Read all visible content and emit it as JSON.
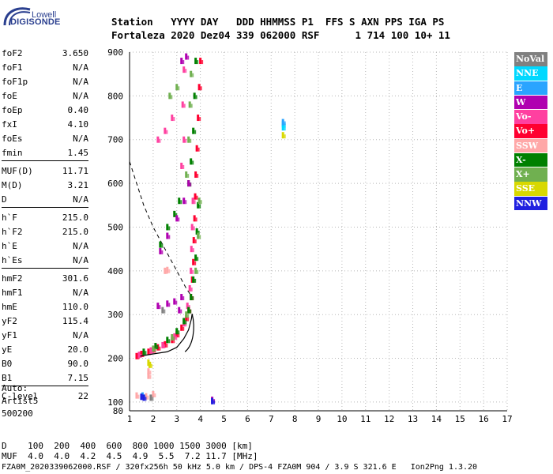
{
  "logo": {
    "line1": "Lowell",
    "line2": "DIGISONDE"
  },
  "header": {
    "line1": "Station   YYYY DAY   DDD HHMMSS P1  FFS S AXN PPS IGA PS",
    "line2": "Fortaleza 2020 Dez04 339 062000 RSF      1 714 100 10+ 11"
  },
  "params": [
    {
      "k": "foF2",
      "v": "3.650"
    },
    {
      "k": "foF1",
      "v": "N/A"
    },
    {
      "k": "foF1p",
      "v": "N/A"
    },
    {
      "k": "foE",
      "v": "N/A"
    },
    {
      "k": "foEp",
      "v": "0.40"
    },
    {
      "k": "fxI",
      "v": "4.10"
    },
    {
      "k": "foEs",
      "v": "N/A"
    },
    {
      "k": "fmin",
      "v": "1.45"
    },
    {
      "k": "MUF(D)",
      "v": "11.71"
    },
    {
      "k": "M(D)",
      "v": "3.21"
    },
    {
      "k": "D",
      "v": "N/A"
    },
    {
      "k": "h`F",
      "v": "215.0"
    },
    {
      "k": "h`F2",
      "v": "215.0"
    },
    {
      "k": "h`E",
      "v": "N/A"
    },
    {
      "k": "h`Es",
      "v": "N/A"
    },
    {
      "k": "hmF2",
      "v": "301.6"
    },
    {
      "k": "hmF1",
      "v": "N/A"
    },
    {
      "k": "hmE",
      "v": "110.0"
    },
    {
      "k": "yF2",
      "v": "115.4"
    },
    {
      "k": "yF1",
      "v": "N/A"
    },
    {
      "k": "yE",
      "v": "20.0"
    },
    {
      "k": "B0",
      "v": "90.0"
    },
    {
      "k": "B1",
      "v": "7.15"
    },
    {
      "k": "C-level",
      "v": "22"
    }
  ],
  "auto": {
    "line1": "Auto:",
    "line2": "Artist5",
    "line3": "500200"
  },
  "legend": [
    {
      "label": "NoVal",
      "color": "#808080"
    },
    {
      "label": "NNE",
      "color": "#00d8ff"
    },
    {
      "label": "E",
      "color": "#2aa4ff"
    },
    {
      "label": "W",
      "color": "#b000b0"
    },
    {
      "label": "Vo-",
      "color": "#ff40a0"
    },
    {
      "label": "Vo+",
      "color": "#ff0030"
    },
    {
      "label": "SSW",
      "color": "#ffa8a8"
    },
    {
      "label": "X-",
      "color": "#008000"
    },
    {
      "label": "X+",
      "color": "#70b050"
    },
    {
      "label": "SSE",
      "color": "#d8d800"
    },
    {
      "label": "NNW",
      "color": "#2020e0"
    }
  ],
  "bottom": {
    "row1": "D    100  200  400  600  800 1000 1500 3000 [km]",
    "row2": "MUF  4.0  4.0  4.2  4.5  4.9  5.5  7.2 11.7 [MHz]"
  },
  "footer": "FZA0M_2020339062000.RSF / 320fx256h 50 kHz 5.0 km / DPS-4 FZA0M 904 / 3.9 S 321.6 E   Ion2Png 1.3.20",
  "chart_data": {
    "type": "scatter",
    "title": "",
    "xlabel": "",
    "ylabel": "",
    "xlim": [
      1,
      17
    ],
    "ylim": [
      80,
      900
    ],
    "xticks": [
      1,
      2,
      3,
      4,
      5,
      6,
      7,
      8,
      9,
      10,
      11,
      12,
      13,
      14,
      15,
      16,
      17
    ],
    "yticks": [
      100,
      200,
      300,
      400,
      500,
      600,
      700,
      800,
      900
    ],
    "grid": "dotted",
    "series": [
      {
        "name": "Vo+",
        "color": "#ff0030",
        "points": [
          [
            1.3,
            205
          ],
          [
            1.5,
            210
          ],
          [
            1.8,
            215
          ],
          [
            2.0,
            220
          ],
          [
            2.2,
            225
          ],
          [
            2.5,
            232
          ],
          [
            2.8,
            242
          ],
          [
            3.0,
            255
          ],
          [
            3.2,
            270
          ],
          [
            3.4,
            292
          ],
          [
            3.5,
            310
          ],
          [
            3.6,
            340
          ],
          [
            3.65,
            380
          ],
          [
            3.7,
            420
          ],
          [
            3.72,
            470
          ],
          [
            3.75,
            520
          ],
          [
            3.78,
            570
          ],
          [
            3.8,
            620
          ],
          [
            3.85,
            680
          ],
          [
            3.9,
            750
          ],
          [
            3.95,
            820
          ],
          [
            4.0,
            880
          ]
        ]
      },
      {
        "name": "Vo-",
        "color": "#ff40a0",
        "points": [
          [
            1.4,
            208
          ],
          [
            1.9,
            218
          ],
          [
            2.4,
            230
          ],
          [
            2.9,
            250
          ],
          [
            3.3,
            280
          ],
          [
            3.45,
            320
          ],
          [
            3.55,
            360
          ],
          [
            3.6,
            400
          ],
          [
            3.62,
            450
          ],
          [
            3.65,
            500
          ],
          [
            3.68,
            560
          ],
          [
            3.2,
            640
          ],
          [
            3.3,
            700
          ],
          [
            3.25,
            780
          ],
          [
            3.3,
            860
          ],
          [
            2.2,
            700
          ],
          [
            2.5,
            720
          ],
          [
            2.8,
            750
          ]
        ]
      },
      {
        "name": "X-",
        "color": "#008000",
        "points": [
          [
            1.6,
            215
          ],
          [
            2.1,
            228
          ],
          [
            2.6,
            242
          ],
          [
            3.0,
            262
          ],
          [
            3.3,
            285
          ],
          [
            3.5,
            310
          ],
          [
            3.6,
            340
          ],
          [
            3.7,
            380
          ],
          [
            3.8,
            430
          ],
          [
            3.85,
            490
          ],
          [
            3.9,
            550
          ],
          [
            3.5,
            600
          ],
          [
            3.6,
            650
          ],
          [
            3.7,
            720
          ],
          [
            3.75,
            800
          ],
          [
            3.8,
            880
          ],
          [
            2.3,
            460
          ],
          [
            2.6,
            500
          ],
          [
            2.9,
            530
          ],
          [
            3.1,
            560
          ]
        ]
      },
      {
        "name": "X+",
        "color": "#70b050",
        "points": [
          [
            2.0,
            222
          ],
          [
            2.8,
            248
          ],
          [
            3.4,
            300
          ],
          [
            3.8,
            400
          ],
          [
            3.9,
            480
          ],
          [
            3.95,
            560
          ],
          [
            3.4,
            620
          ],
          [
            3.5,
            700
          ],
          [
            3.55,
            780
          ],
          [
            3.6,
            850
          ],
          [
            3.0,
            820
          ],
          [
            2.7,
            800
          ]
        ]
      },
      {
        "name": "W",
        "color": "#b000b0",
        "points": [
          [
            2.2,
            320
          ],
          [
            2.6,
            325
          ],
          [
            2.9,
            330
          ],
          [
            3.2,
            340
          ],
          [
            2.3,
            445
          ],
          [
            2.6,
            480
          ],
          [
            3.0,
            520
          ],
          [
            3.3,
            560
          ],
          [
            3.5,
            600
          ],
          [
            3.2,
            880
          ],
          [
            3.4,
            890
          ],
          [
            4.5,
            105
          ],
          [
            3.1,
            310
          ]
        ]
      },
      {
        "name": "SSW",
        "color": "#ffa8a8",
        "points": [
          [
            1.3,
            115
          ],
          [
            1.7,
            113
          ],
          [
            2.0,
            118
          ],
          [
            2.5,
            400
          ],
          [
            2.6,
            402
          ],
          [
            1.8,
            160
          ],
          [
            1.8,
            170
          ]
        ]
      },
      {
        "name": "SSE",
        "color": "#d8d800",
        "points": [
          [
            1.8,
            190
          ],
          [
            1.85,
            185
          ],
          [
            7.5,
            710
          ]
        ]
      },
      {
        "name": "NNE",
        "color": "#00d8ff",
        "points": [
          [
            7.5,
            735
          ],
          [
            7.5,
            728
          ]
        ]
      },
      {
        "name": "E",
        "color": "#2aa4ff",
        "points": [
          [
            7.5,
            740
          ],
          [
            1.55,
            115
          ]
        ]
      },
      {
        "name": "NNW",
        "color": "#2020e0",
        "points": [
          [
            1.5,
            112
          ],
          [
            1.6,
            110
          ],
          [
            4.5,
            102
          ]
        ]
      },
      {
        "name": "NoVal",
        "color": "#808080",
        "points": [
          [
            1.9,
            110
          ],
          [
            2.4,
            310
          ]
        ]
      }
    ],
    "profile_curve": [
      [
        1.45,
        205
      ],
      [
        2.0,
        210
      ],
      [
        2.6,
        215
      ],
      [
        3.0,
        225
      ],
      [
        3.3,
        245
      ],
      [
        3.5,
        265
      ],
      [
        3.62,
        290
      ],
      [
        3.65,
        301.6
      ]
    ],
    "muf_curve": [
      [
        1.0,
        650
      ],
      [
        1.3,
        600
      ],
      [
        1.6,
        550
      ],
      [
        2.0,
        500
      ],
      [
        2.4,
        460
      ],
      [
        2.8,
        420
      ],
      [
        3.1,
        390
      ],
      [
        3.4,
        360
      ],
      [
        3.65,
        340
      ]
    ]
  }
}
